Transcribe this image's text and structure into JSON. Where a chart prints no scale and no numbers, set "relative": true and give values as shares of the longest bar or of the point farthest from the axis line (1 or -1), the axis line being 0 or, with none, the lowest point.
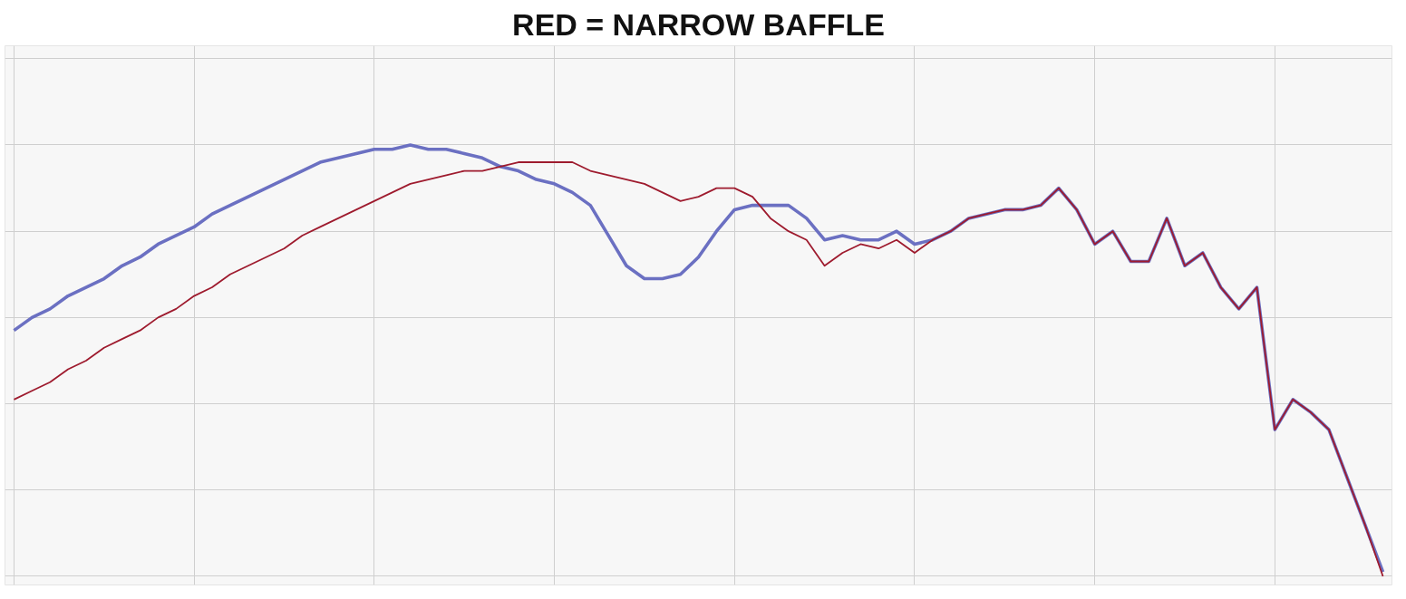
{
  "chart_data": {
    "type": "line",
    "title": "RED = NARROW BAFFLE",
    "relative": true,
    "grid": true,
    "categories": [
      null,
      null,
      null,
      null,
      null,
      null,
      null,
      null,
      null,
      null,
      null,
      null,
      null,
      null,
      null,
      null,
      null,
      null,
      null,
      null,
      null,
      null,
      null,
      null,
      null,
      null,
      null,
      null,
      null,
      null,
      null,
      null,
      null,
      null,
      null,
      null,
      null,
      null,
      null,
      null,
      null,
      null,
      null,
      null,
      null,
      null,
      null,
      null,
      null,
      null,
      null,
      null,
      null,
      null,
      null,
      null,
      null,
      null,
      null,
      null,
      null,
      null,
      null,
      null,
      null,
      null,
      null,
      null,
      null,
      null,
      null,
      null,
      null,
      null,
      null,
      null,
      null
    ],
    "series": [
      {
        "color": "#6b70c2",
        "values": [
          0.57,
          0.6,
          0.62,
          0.65,
          0.67,
          0.69,
          0.72,
          0.74,
          0.77,
          0.79,
          0.81,
          0.84,
          0.86,
          0.88,
          0.9,
          0.92,
          0.94,
          0.96,
          0.97,
          0.98,
          0.99,
          0.99,
          1,
          0.99,
          0.99,
          0.98,
          0.97,
          0.95,
          0.94,
          0.92,
          0.91,
          0.89,
          0.86,
          0.79,
          0.72,
          0.69,
          0.69,
          0.7,
          0.74,
          0.8,
          0.85,
          0.86,
          0.86,
          0.86,
          0.83,
          0.78,
          0.79,
          0.78,
          0.78,
          0.8,
          0.77,
          0.78,
          0.8,
          0.83,
          0.84,
          0.85,
          0.85,
          0.86,
          0.9,
          0.85,
          0.77,
          0.8,
          0.73,
          0.73,
          0.83,
          0.72,
          0.75,
          0.67,
          0.62,
          0.67,
          0.34,
          0.41,
          0.38,
          0.34,
          0.23,
          0.12,
          0.01
        ]
      },
      {
        "color": "#9e1b2e",
        "values": [
          0.41,
          0.43,
          0.45,
          0.48,
          0.5,
          0.53,
          0.55,
          0.57,
          0.6,
          0.62,
          0.65,
          0.67,
          0.7,
          0.72,
          0.74,
          0.76,
          0.79,
          0.81,
          0.83,
          0.85,
          0.87,
          0.89,
          0.91,
          0.92,
          0.93,
          0.94,
          0.94,
          0.95,
          0.96,
          0.96,
          0.96,
          0.96,
          0.94,
          0.93,
          0.92,
          0.91,
          0.89,
          0.87,
          0.88,
          0.9,
          0.9,
          0.88,
          0.83,
          0.8,
          0.78,
          0.72,
          0.75,
          0.77,
          0.76,
          0.78,
          0.75,
          0.78,
          0.8,
          0.83,
          0.84,
          0.85,
          0.85,
          0.86,
          0.9,
          0.85,
          0.77,
          0.8,
          0.73,
          0.73,
          0.83,
          0.72,
          0.75,
          0.67,
          0.62,
          0.67,
          0.34,
          0.41,
          0.38,
          0.34,
          0.23,
          0.12,
          0
        ]
      }
    ]
  }
}
